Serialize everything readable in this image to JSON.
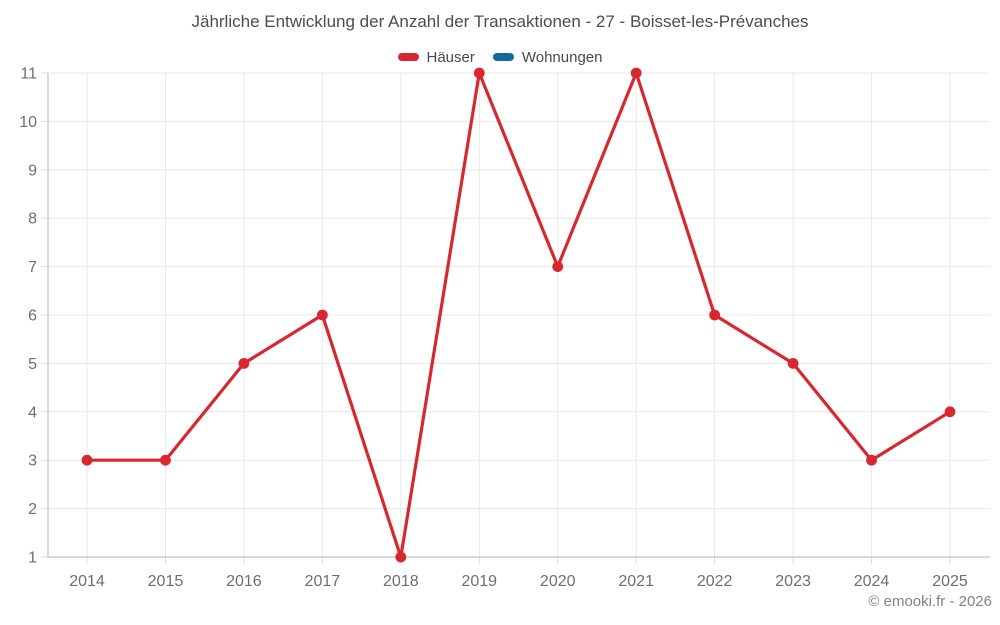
{
  "chart_data": {
    "type": "line",
    "title": "Jährliche Entwicklung der Anzahl der Transaktionen - 27 - Boisset-les-Prévanches",
    "categories": [
      "2014",
      "2015",
      "2016",
      "2017",
      "2018",
      "2019",
      "2020",
      "2021",
      "2022",
      "2023",
      "2024",
      "2025"
    ],
    "series": [
      {
        "name": "Häuser",
        "color": "#d7282f",
        "values": [
          3,
          3,
          5,
          6,
          1,
          11,
          7,
          11,
          6,
          5,
          3,
          4
        ]
      },
      {
        "name": "Wohnungen",
        "color": "#136a9e",
        "values": []
      }
    ],
    "ylim": [
      1,
      11
    ],
    "ytick_step": 1,
    "grid": true,
    "legend_position": "top",
    "colors": {
      "grid": "#e8e8e8",
      "tick": "#dcdcdc",
      "axis": "#b3b3b3",
      "axis_text": "#6e6e6e",
      "title_text": "#4d4d4d",
      "legend_text": "#4a4a4a",
      "footer_text": "#828282"
    }
  },
  "footer": {
    "copyright": "© emooki.fr - 2026"
  }
}
